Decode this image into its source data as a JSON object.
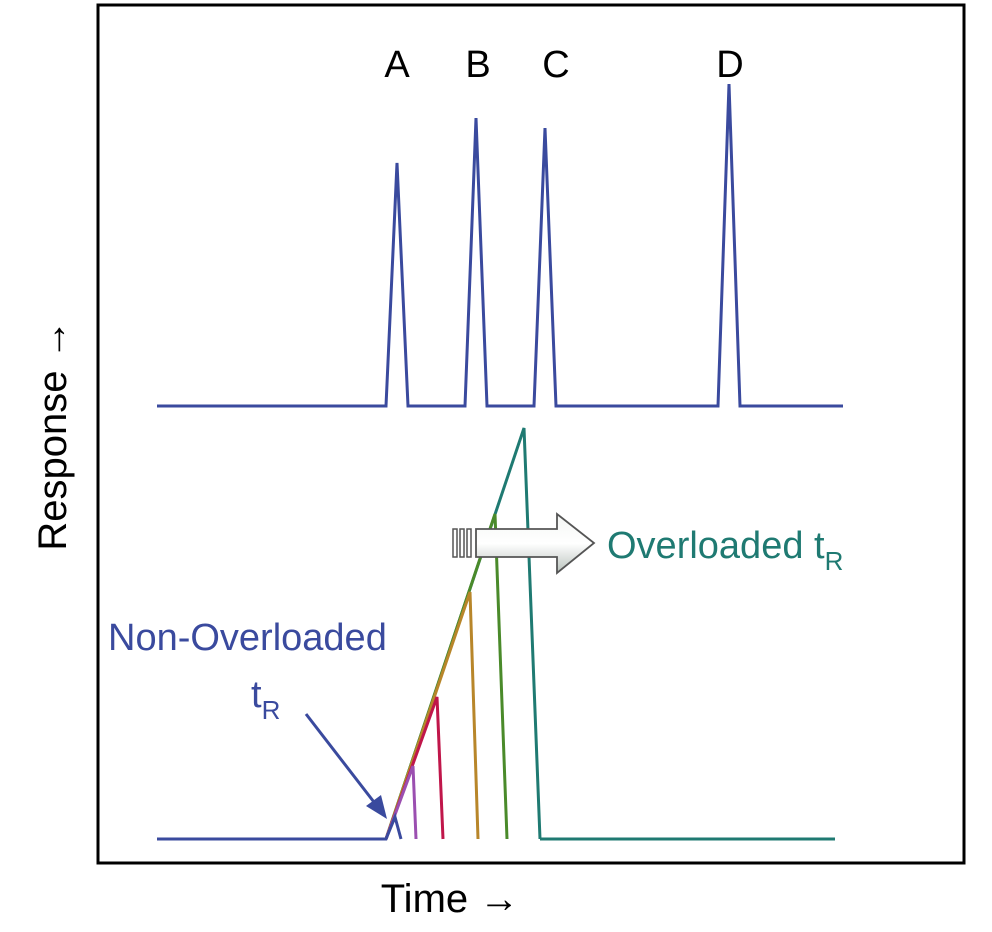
{
  "axes": {
    "x_label": "Time →",
    "y_label": "Response →"
  },
  "top_trace": {
    "color": "#3a4a9e",
    "peak_labels": [
      "A",
      "B",
      "C",
      "D"
    ]
  },
  "bottom_trace": {
    "colors": [
      "#3a4a9e",
      "#9b4fb0",
      "#c0164a",
      "#b8862a",
      "#4a8a2a",
      "#1f7a72"
    ]
  },
  "annotations": {
    "non_overloaded": {
      "text": "Non-Overloaded",
      "t": "t",
      "sub": "R",
      "color": "#3a4a9e"
    },
    "overloaded": {
      "text": "Overloaded ",
      "t": "t",
      "sub": "R",
      "color": "#1f7a72"
    }
  }
}
